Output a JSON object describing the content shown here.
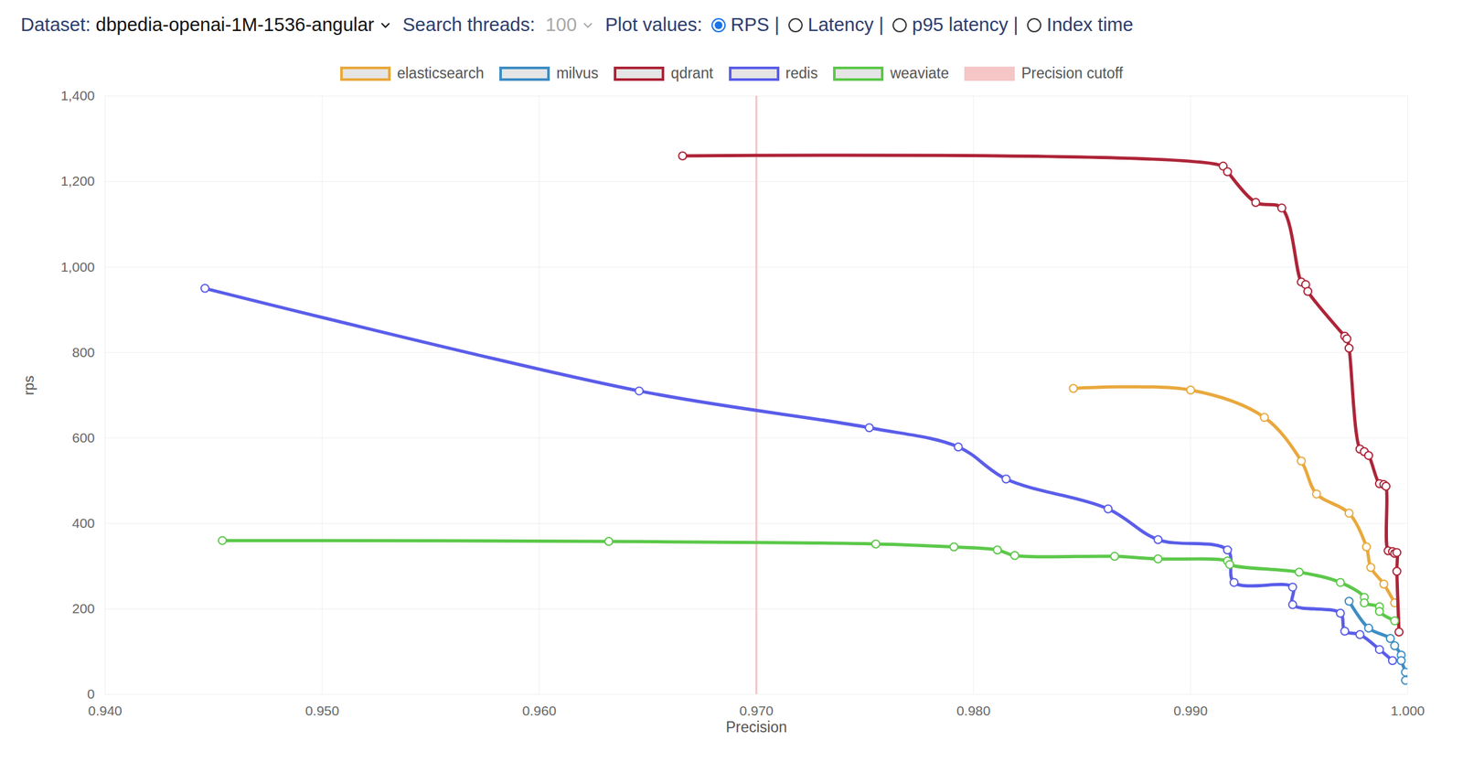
{
  "controls": {
    "dataset_label": "Dataset:",
    "dataset": "dbpedia-openai-1M-1536-angular",
    "threads_label": "Search threads:",
    "threads": 100,
    "plot_values_label": "Plot values:",
    "separator": "|",
    "options": [
      "RPS",
      "Latency",
      "p95 latency",
      "Index time"
    ],
    "selected": "RPS"
  },
  "chart_data": {
    "type": "line",
    "marker": "circle",
    "grid": true,
    "x_label": "Precision",
    "y_label": "rps",
    "xlim": [
      0.94,
      1.0
    ],
    "xticks": [
      {
        "value": 0.94,
        "label": "0.940"
      },
      {
        "value": 0.95,
        "label": "0.950"
      },
      {
        "value": 0.96,
        "label": "0.960"
      },
      {
        "value": 0.97,
        "label": "0.970"
      },
      {
        "value": 0.98,
        "label": "0.980"
      },
      {
        "value": 0.99,
        "label": "0.990"
      },
      {
        "value": 1.0,
        "label": "1.000"
      }
    ],
    "ylim": [
      0,
      1400
    ],
    "yticks": [
      0,
      200,
      400,
      600,
      800,
      {
        "value": 1000,
        "label": "1,000"
      },
      {
        "value": 1200,
        "label": "1,200"
      },
      {
        "value": 1400,
        "label": "1,400"
      }
    ],
    "series": [
      {
        "name": "elasticsearch",
        "color": "#e9a83c",
        "x": [
          0.9846,
          0.99,
          0.9934,
          0.9951,
          0.9958,
          0.9973,
          0.9981,
          0.9983,
          0.9989,
          0.9994
        ],
        "values": [
          716,
          712,
          648,
          546,
          469,
          424,
          345,
          297,
          258,
          214
        ]
      },
      {
        "name": "milvus",
        "color": "#3e8dc4",
        "x": [
          0.9973,
          0.9982,
          0.9992,
          0.9994,
          0.9997,
          0.9997,
          0.9999,
          0.9999
        ],
        "values": [
          218,
          155,
          131,
          114,
          92,
          79,
          52,
          33
        ]
      },
      {
        "name": "qdrant",
        "color": "#ae2438",
        "x": [
          0.9666,
          0.9915,
          0.9917,
          0.993,
          0.9942,
          0.9951,
          0.9953,
          0.9954,
          0.9971,
          0.9972,
          0.9973,
          0.9978,
          0.998,
          0.9982,
          0.9987,
          0.9989,
          0.999,
          0.9991,
          0.9993,
          0.9994,
          0.9995,
          0.9995,
          0.9996
        ],
        "values": [
          1260,
          1236,
          1223,
          1151,
          1138,
          965,
          959,
          943,
          838,
          832,
          810,
          574,
          568,
          559,
          493,
          491,
          487,
          336,
          334,
          330,
          332,
          288,
          146
        ]
      },
      {
        "name": "redis",
        "color": "#5a5de9",
        "x": [
          0.9446,
          0.9646,
          0.9752,
          0.9793,
          0.9815,
          0.9862,
          0.9885,
          0.9917,
          0.992,
          0.9947,
          0.9947,
          0.9969,
          0.9971,
          0.9978,
          0.9987,
          0.9993
        ],
        "values": [
          950,
          710,
          624,
          579,
          504,
          434,
          362,
          338,
          262,
          251,
          210,
          190,
          148,
          140,
          105,
          79
        ]
      },
      {
        "name": "weaviate",
        "color": "#5cc84a",
        "x": [
          0.9454,
          0.9632,
          0.9755,
          0.9791,
          0.9811,
          0.9819,
          0.9865,
          0.9885,
          0.9917,
          0.9918,
          0.995,
          0.9969,
          0.998,
          0.998,
          0.9987,
          0.9987,
          0.9994
        ],
        "values": [
          360,
          358,
          352,
          345,
          338,
          325,
          323,
          317,
          312,
          304,
          286,
          262,
          227,
          214,
          205,
          194,
          172
        ]
      }
    ],
    "annotations": [
      {
        "type": "rule",
        "x": 0.97,
        "label": "Precision cutoff",
        "color": "#f5c6c6"
      }
    ]
  }
}
